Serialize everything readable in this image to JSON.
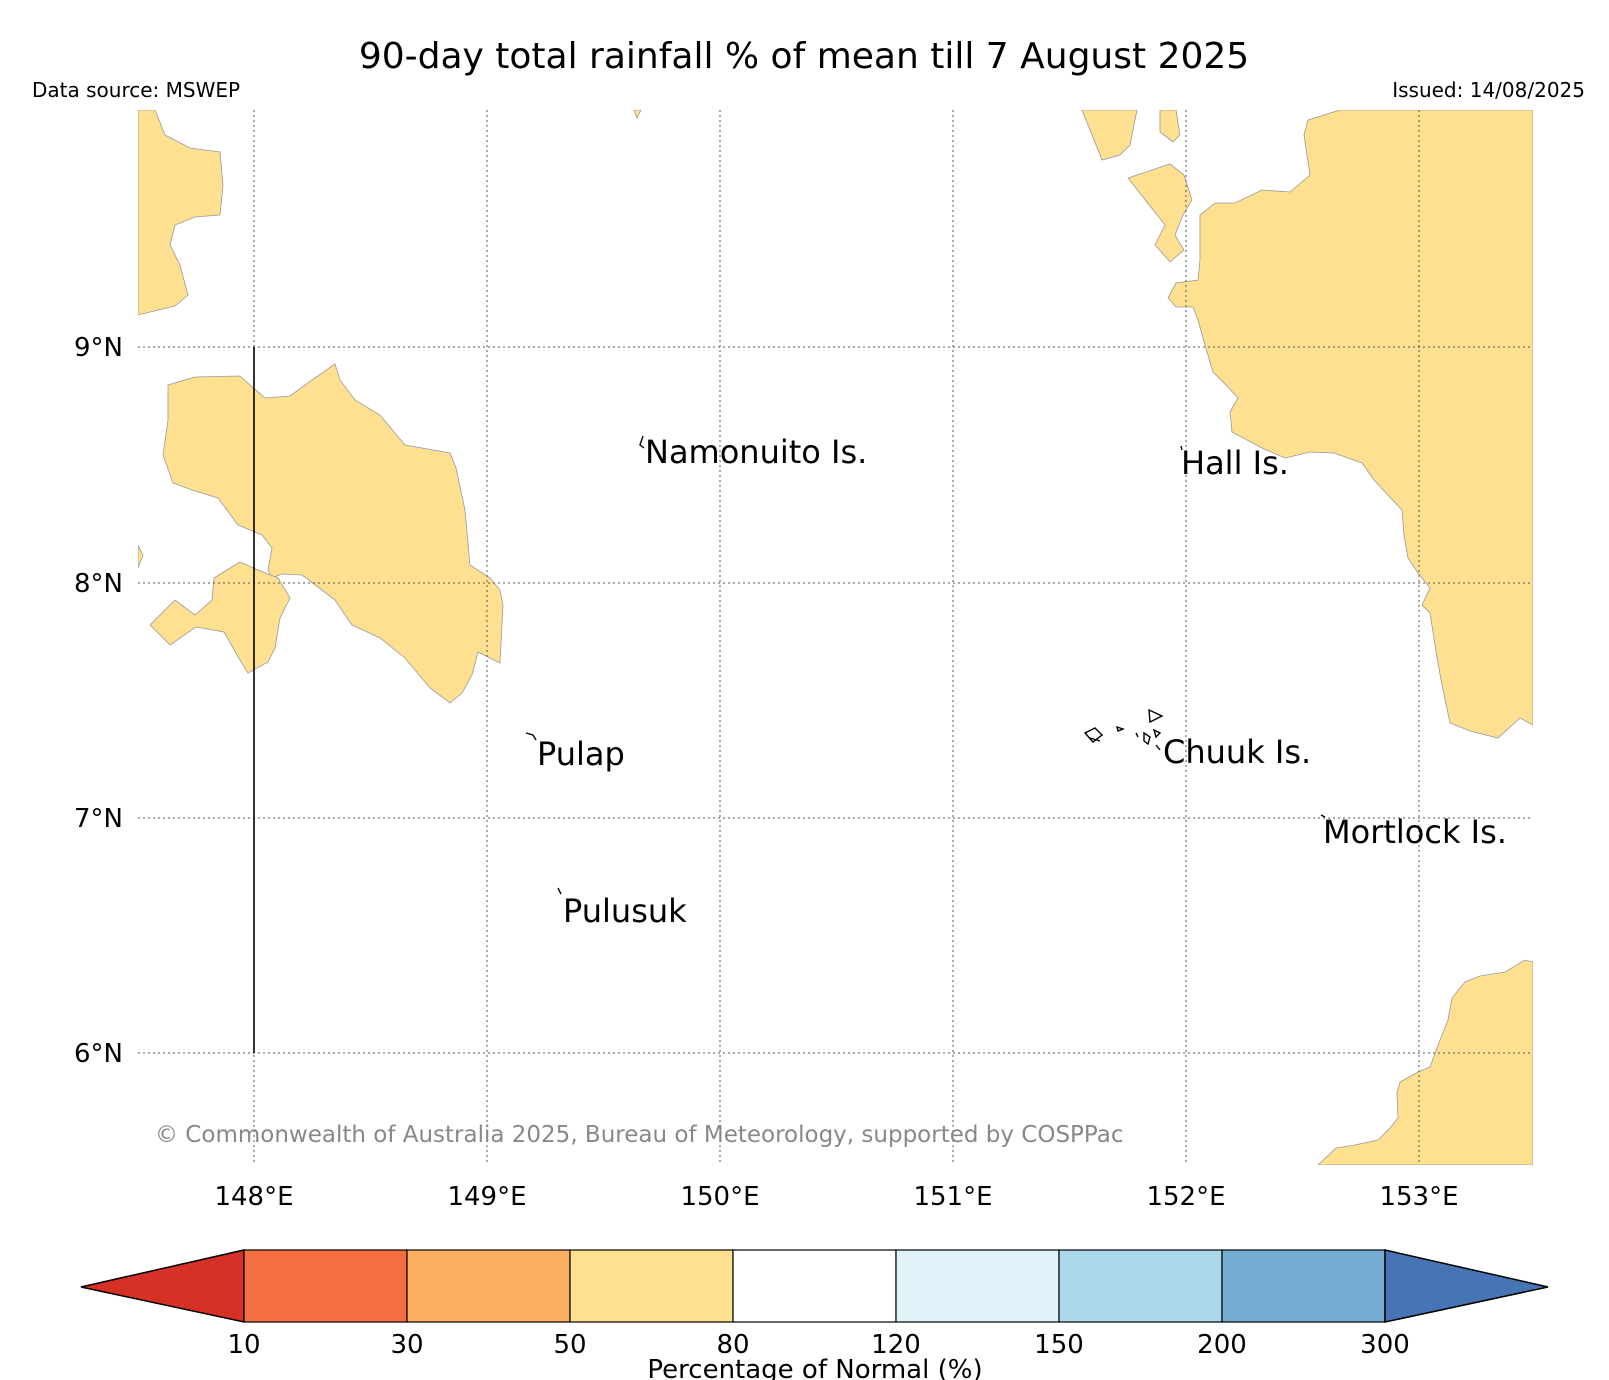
{
  "header": {
    "title": "90-day total rainfall % of mean till 7 August 2025",
    "data_source": "Data source: MSWEP",
    "issued": "Issued: 14/08/2025"
  },
  "map": {
    "lat_labels": [
      "9°N",
      "8°N",
      "7°N",
      "6°N"
    ],
    "lon_labels": [
      "148°E",
      "149°E",
      "150°E",
      "151°E",
      "152°E",
      "153°E"
    ],
    "places": [
      {
        "name": "Namonuito Is."
      },
      {
        "name": "Hall Is."
      },
      {
        "name": "Pulap"
      },
      {
        "name": "Chuuk Is."
      },
      {
        "name": "Mortlock Is."
      },
      {
        "name": "Pulusuk"
      }
    ],
    "land_fill_category": "50-80",
    "copyright": "© Commonwealth of Australia 2025, Bureau of Meteorology, supported by COSPPac"
  },
  "colorbar": {
    "label": "Percentage of Normal (%)",
    "ticks": [
      "10",
      "30",
      "50",
      "80",
      "120",
      "150",
      "200",
      "300"
    ],
    "colors": {
      "below_10": "#d73027",
      "10_30": "#f46d43",
      "30_50": "#fdae61",
      "50_80": "#fee090",
      "80_120": "#ffffff",
      "120_150": "#e0f3f8",
      "150_200": "#abd9e9",
      "200_300": "#74add1",
      "above_300": "#4575b4"
    }
  }
}
